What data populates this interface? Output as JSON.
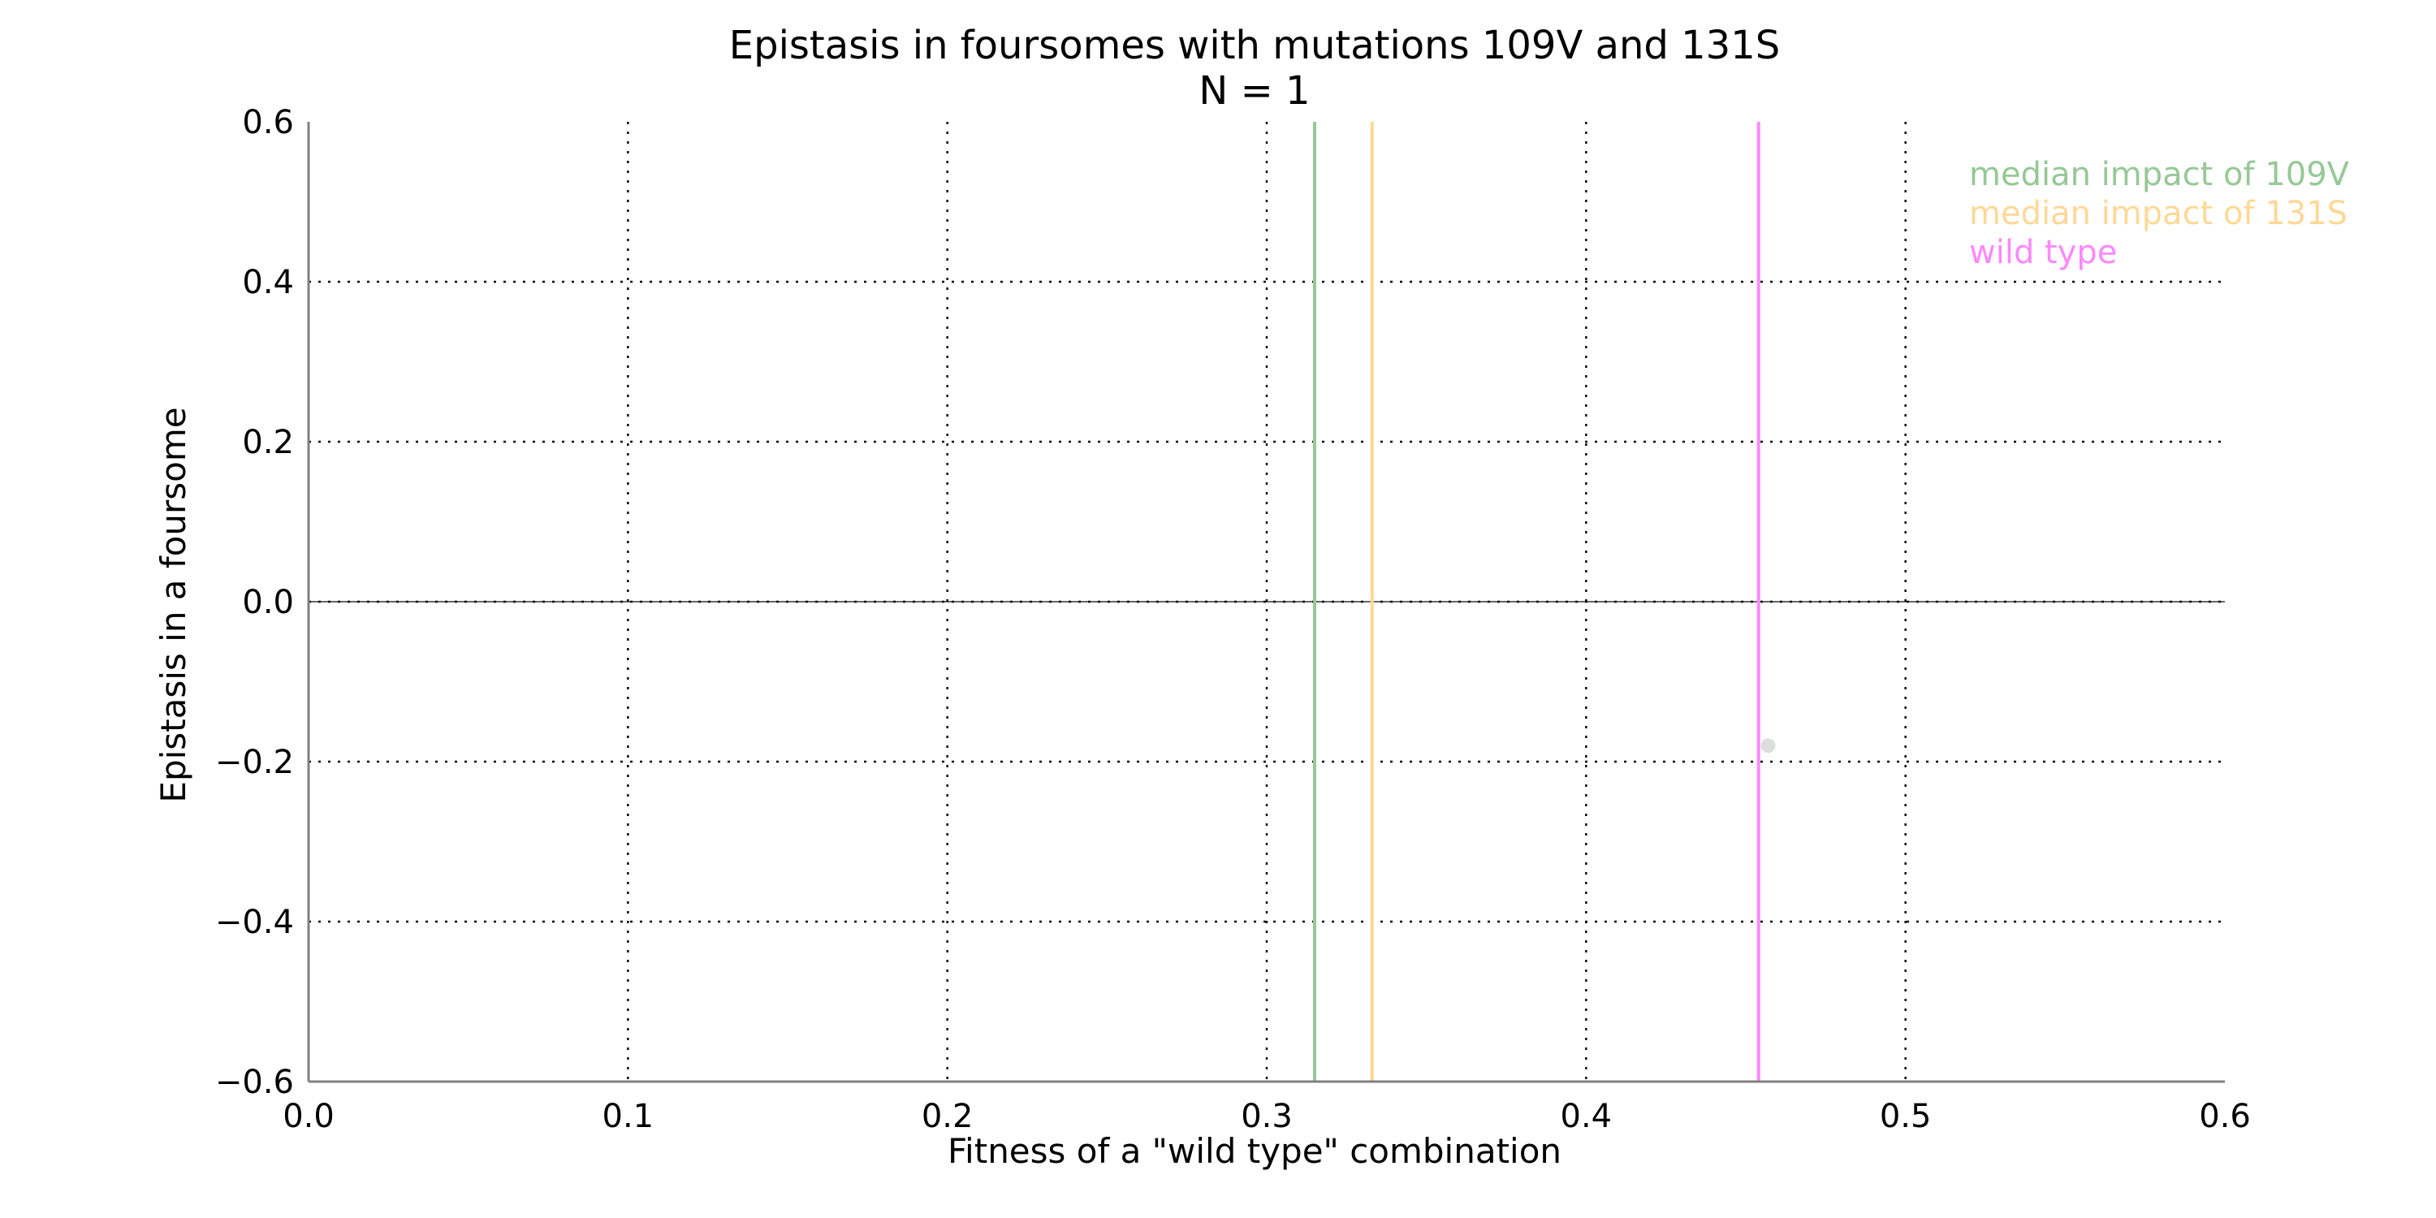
{
  "chart_data": {
    "type": "scatter",
    "title": "Epistasis in foursomes with mutations 109V and 131S",
    "subtitle": "N = 1",
    "xlabel": "Fitness of a \"wild type\" combination",
    "ylabel": "Epistasis in a foursome",
    "xlim": [
      0.0,
      0.6
    ],
    "ylim": [
      -0.6,
      0.6
    ],
    "xticks": [
      0.0,
      0.1,
      0.2,
      0.3,
      0.4,
      0.5,
      0.6
    ],
    "yticks": [
      -0.6,
      -0.4,
      -0.2,
      0.0,
      0.2,
      0.4,
      0.6
    ],
    "xtick_labels": [
      "0.0",
      "0.1",
      "0.2",
      "0.3",
      "0.4",
      "0.5",
      "0.6"
    ],
    "ytick_labels": [
      "−0.6",
      "−0.4",
      "−0.2",
      "0.0",
      "0.2",
      "0.4",
      "0.6"
    ],
    "grid": true,
    "legend_position": "top-right",
    "points": [
      {
        "x": 0.457,
        "y": -0.18,
        "color": "#dddddd"
      }
    ],
    "vlines": [
      {
        "x": 0.315,
        "label": "median impact of 109V",
        "color": "#96c896"
      },
      {
        "x": 0.333,
        "label": "median impact of 131S",
        "color": "#ffd896"
      },
      {
        "x": 0.454,
        "label": "wild type",
        "color": "#ff88ff"
      }
    ],
    "hline": {
      "y": 0.0,
      "color": "#000000"
    }
  }
}
